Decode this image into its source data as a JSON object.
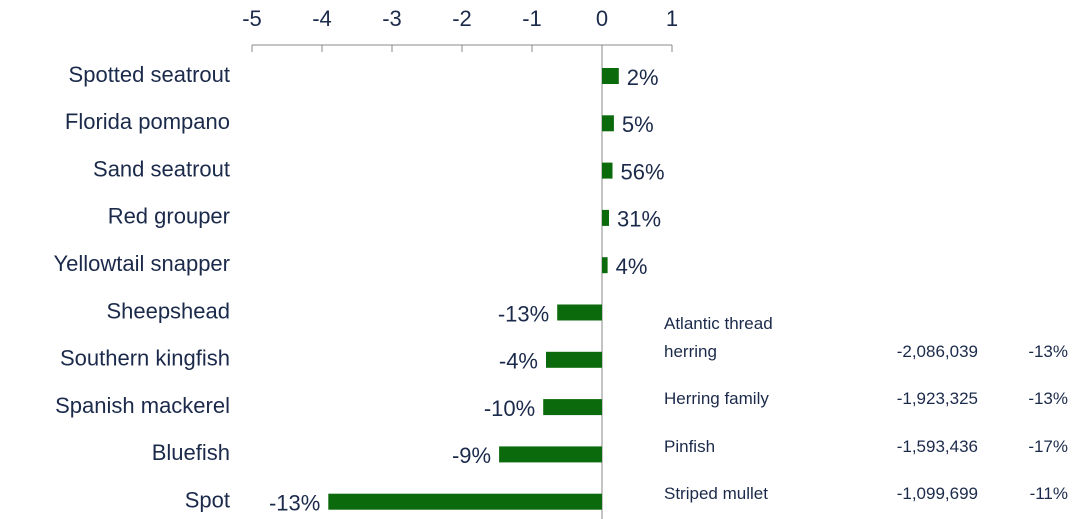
{
  "chart_data": {
    "type": "barh",
    "categories": [
      "Spotted seatrout",
      "Florida pompano",
      "Sand seatrout",
      "Red grouper",
      "Yellowtail snapper",
      "Sheepshead",
      "Southern kingfish",
      "Spanish mackerel",
      "Bluefish",
      "Spot"
    ],
    "values": [
      0.24,
      0.17,
      0.15,
      0.1,
      0.08,
      -0.64,
      -0.8,
      -0.84,
      -1.47,
      -3.91
    ],
    "bar_labels": [
      "2%",
      "5%",
      "56%",
      "31%",
      "4%",
      "-13%",
      "-4%",
      "-10%",
      "-9%",
      "-13%"
    ],
    "color": "#0b6a0b",
    "xlim": [
      -5,
      1
    ],
    "xticks": [
      -5,
      -4,
      -3,
      -2,
      -1,
      0,
      1
    ]
  },
  "table": {
    "rows": [
      [
        "Atlantic thread herring",
        "-2,086,039",
        "-13%"
      ],
      [
        "Herring family",
        "-1,923,325",
        "-13%"
      ],
      [
        "Pinfish",
        "-1,593,436",
        "-17%"
      ],
      [
        "Striped mullet",
        "-1,099,699",
        "-11%"
      ]
    ]
  }
}
